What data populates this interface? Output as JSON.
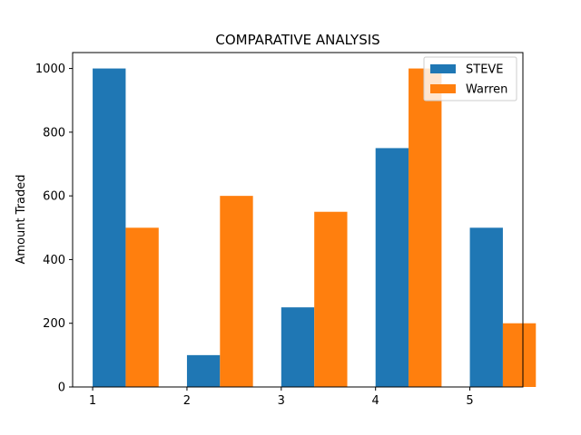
{
  "chart_data": {
    "type": "bar",
    "title": "COMPARATIVE ANALYSIS",
    "xlabel": "",
    "ylabel": "Amount Traded",
    "categories": [
      "1",
      "2",
      "3",
      "4",
      "5"
    ],
    "series": [
      {
        "name": "STEVE",
        "values": [
          1000,
          100,
          250,
          750,
          500
        ],
        "color": "#1f77b4"
      },
      {
        "name": "Warren",
        "values": [
          500,
          600,
          550,
          1000,
          200
        ],
        "color": "#ff7f0e"
      }
    ],
    "ylim": [
      0,
      1050
    ],
    "yticks": [
      0,
      200,
      400,
      600,
      800,
      1000
    ],
    "grid": false,
    "legend_position": "top-right"
  }
}
